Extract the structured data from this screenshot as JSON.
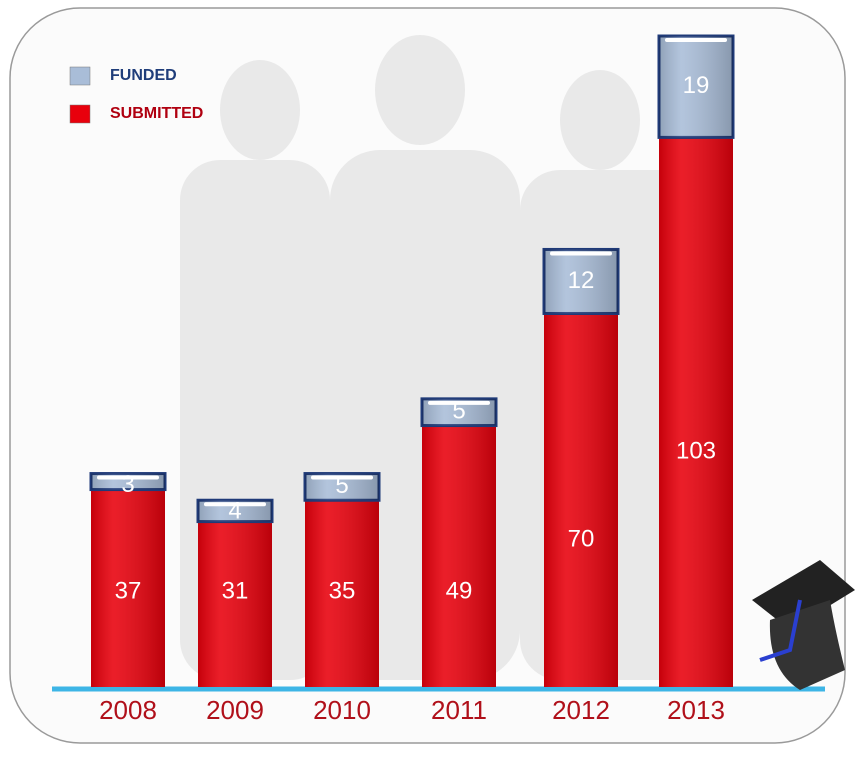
{
  "chart_data": {
    "type": "stacked-bar",
    "categories": [
      "2008",
      "2009",
      "2010",
      "2011",
      "2012",
      "2013"
    ],
    "series": [
      {
        "name": "SUBMITTED",
        "color": "#e8000c",
        "values": [
          37,
          31,
          35,
          49,
          70,
          103
        ]
      },
      {
        "name": "FUNDED",
        "color": "#a9bdd8",
        "values": [
          3,
          4,
          5,
          5,
          12,
          19
        ]
      }
    ],
    "ylim": [
      0,
      125
    ]
  }
}
